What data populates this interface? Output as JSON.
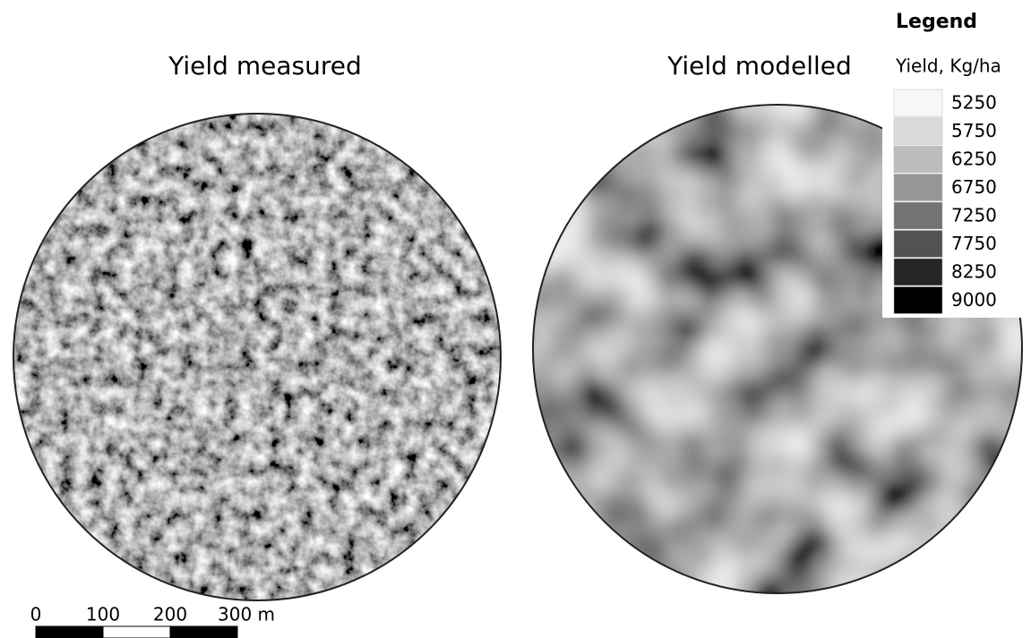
{
  "maps": [
    {
      "title": "Yield measured"
    },
    {
      "title": "Yield modelled"
    }
  ],
  "legend": {
    "title": "Legend",
    "subtitle": "Yield, Kg/ha",
    "items": [
      {
        "label": 5250,
        "color": "#f7f7f7"
      },
      {
        "label": 5750,
        "color": "#d9d9d9"
      },
      {
        "label": 6250,
        "color": "#bdbdbd"
      },
      {
        "label": 6750,
        "color": "#969696"
      },
      {
        "label": 7250,
        "color": "#737373"
      },
      {
        "label": 7750,
        "color": "#525252"
      },
      {
        "label": 8250,
        "color": "#252525"
      },
      {
        "label": 9000,
        "color": "#000000"
      }
    ]
  },
  "scale_bar": {
    "ticks": [
      0,
      100,
      200,
      {
        "value": 300,
        "label": "300 m"
      }
    ]
  }
}
